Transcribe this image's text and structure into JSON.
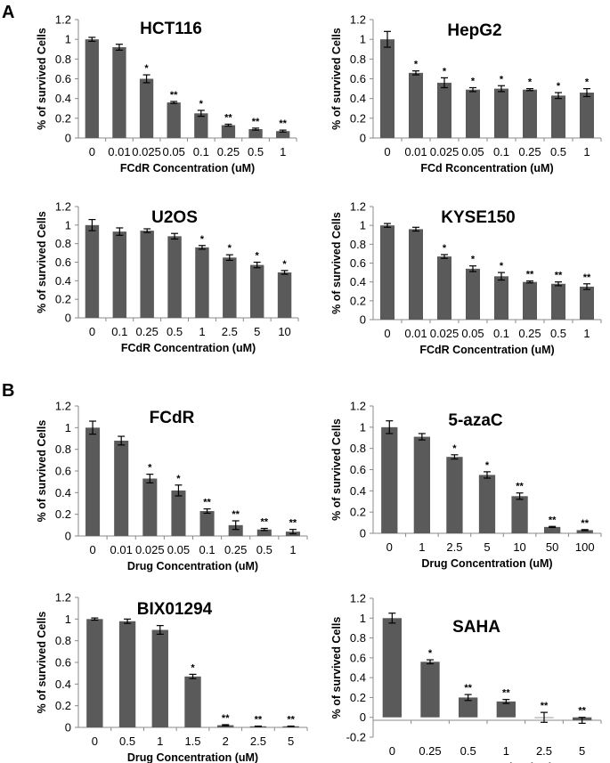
{
  "panel_labels": [
    "A",
    "B"
  ],
  "colors": {
    "bar": "#5a5a5a",
    "axis": "#888888",
    "text": "#000000"
  },
  "chart_data": [
    {
      "type": "bar",
      "title": "HCT116",
      "xlabel": "FCdR Concentration (uM)",
      "ylabel": "% of survived Cells",
      "categories": [
        "0",
        "0.01",
        "0.025",
        "0.05",
        "0.1",
        "0.25",
        "0.5",
        "1"
      ],
      "values": [
        1.0,
        0.92,
        0.6,
        0.36,
        0.25,
        0.13,
        0.09,
        0.07
      ],
      "errors": [
        0.02,
        0.03,
        0.04,
        0.01,
        0.03,
        0.01,
        0.01,
        0.01
      ],
      "significance": [
        "",
        "",
        "*",
        "**",
        "*",
        "**",
        "**",
        "**"
      ],
      "ylim": [
        0,
        1.2
      ],
      "yticks": [
        "0",
        "0.2",
        "0.4",
        "0.6",
        "0.8",
        "1",
        "1.2"
      ]
    },
    {
      "type": "bar",
      "title": "HepG2",
      "xlabel": "FCd Rconcentration (uM)",
      "ylabel": "% of survived Cells",
      "categories": [
        "0",
        "0.01",
        "0.025",
        "0.05",
        "0.1",
        "0.25",
        "0.5",
        "1"
      ],
      "values": [
        1.0,
        0.66,
        0.56,
        0.49,
        0.5,
        0.49,
        0.43,
        0.46
      ],
      "errors": [
        0.08,
        0.02,
        0.05,
        0.02,
        0.03,
        0.01,
        0.03,
        0.04
      ],
      "significance": [
        "",
        "*",
        "*",
        "*",
        "*",
        "*",
        "*",
        "*"
      ],
      "ylim": [
        0,
        1.2
      ],
      "yticks": [
        "0",
        "0.2",
        "0.4",
        "0.6",
        "0.8",
        "1",
        "1.2"
      ]
    },
    {
      "type": "bar",
      "title": "U2OS",
      "xlabel": "FCdR Concentration (uM)",
      "ylabel": "% of survived Cells",
      "categories": [
        "0",
        "0.1",
        "0.25",
        "0.5",
        "1",
        "2.5",
        "5",
        "10"
      ],
      "values": [
        1.0,
        0.93,
        0.94,
        0.88,
        0.76,
        0.65,
        0.57,
        0.49
      ],
      "errors": [
        0.06,
        0.04,
        0.02,
        0.03,
        0.02,
        0.03,
        0.03,
        0.02
      ],
      "significance": [
        "",
        "",
        "",
        "",
        "*",
        "*",
        "*",
        "*"
      ],
      "ylim": [
        0,
        1.2
      ],
      "yticks": [
        "0",
        "0.2",
        "0.4",
        "0.6",
        "0.8",
        "1",
        "1.2"
      ]
    },
    {
      "type": "bar",
      "title": "KYSE150",
      "xlabel": "FCdR Concentration (uM)",
      "ylabel": "% of survived Cells",
      "categories": [
        "0",
        "0.01",
        "0.025",
        "0.05",
        "0.1",
        "0.25",
        "0.5",
        "1"
      ],
      "values": [
        1.0,
        0.96,
        0.67,
        0.54,
        0.46,
        0.4,
        0.38,
        0.35
      ],
      "errors": [
        0.02,
        0.02,
        0.02,
        0.03,
        0.04,
        0.01,
        0.02,
        0.03
      ],
      "significance": [
        "",
        "",
        "*",
        "*",
        "*",
        "**",
        "**",
        "**"
      ],
      "ylim": [
        0,
        1.2
      ],
      "yticks": [
        "0",
        "0.2",
        "0.4",
        "0.6",
        "0.8",
        "1",
        "1.2"
      ]
    },
    {
      "type": "bar",
      "title": "FCdR",
      "xlabel": "Drug Concentration (uM)",
      "ylabel": "% of survived Cells",
      "categories": [
        "0",
        "0.01",
        "0.025",
        "0.05",
        "0.1",
        "0.25",
        "0.5",
        "1"
      ],
      "values": [
        1.0,
        0.88,
        0.53,
        0.42,
        0.23,
        0.1,
        0.06,
        0.04
      ],
      "errors": [
        0.06,
        0.04,
        0.04,
        0.05,
        0.02,
        0.04,
        0.01,
        0.02
      ],
      "significance": [
        "",
        "",
        "*",
        "*",
        "**",
        "**",
        "**",
        "**"
      ],
      "ylim": [
        0,
        1.2
      ],
      "yticks": [
        "0",
        "0.2",
        "0.4",
        "0.6",
        "0.8",
        "1",
        "1.2"
      ]
    },
    {
      "type": "bar",
      "title": "5-azaC",
      "xlabel": "Drug Concentration (uM)",
      "ylabel": "% of survived Cells",
      "categories": [
        "0",
        "1",
        "2.5",
        "5",
        "10",
        "50",
        "100"
      ],
      "values": [
        1.0,
        0.91,
        0.72,
        0.55,
        0.35,
        0.06,
        0.03
      ],
      "errors": [
        0.06,
        0.03,
        0.02,
        0.03,
        0.03,
        0.005,
        0.005
      ],
      "significance": [
        "",
        "",
        "*",
        "*",
        "**",
        "**",
        "**"
      ],
      "ylim": [
        0,
        1.2
      ],
      "yticks": [
        "0",
        "0.2",
        "0.4",
        "0.6",
        "0.8",
        "1",
        "1.2"
      ]
    },
    {
      "type": "bar",
      "title": "BIX01294",
      "xlabel": "Drug Concentration (uM)",
      "ylabel": "% of survived Cells",
      "categories": [
        "0",
        "0.5",
        "1",
        "1.5",
        "2",
        "2.5",
        "5"
      ],
      "values": [
        1.0,
        0.98,
        0.9,
        0.47,
        0.02,
        0.01,
        0.01
      ],
      "errors": [
        0.01,
        0.02,
        0.04,
        0.02,
        0.005,
        0.002,
        0.002
      ],
      "significance": [
        "",
        "",
        "",
        "*",
        "**",
        "**",
        "**"
      ],
      "ylim": [
        0,
        1.2
      ],
      "yticks": [
        "0",
        "0.2",
        "0.4",
        "0.6",
        "0.8",
        "1",
        "1.2"
      ]
    },
    {
      "type": "bar",
      "title": "SAHA",
      "xlabel": "Drug Concentration (uM)",
      "ylabel": "% of survived Cells",
      "categories": [
        "0",
        "0.25",
        "0.5",
        "1",
        "2.5",
        "5"
      ],
      "values": [
        1.0,
        0.56,
        0.2,
        0.16,
        0.0,
        -0.03
      ],
      "errors": [
        0.05,
        0.02,
        0.03,
        0.02,
        0.05,
        0.03
      ],
      "significance": [
        "",
        "*",
        "**",
        "**",
        "**",
        "**"
      ],
      "ylim": [
        -0.2,
        1.2
      ],
      "yticks": [
        "-0.2",
        "0",
        "0.2",
        "0.4",
        "0.6",
        "0.8",
        "1",
        "1.2"
      ]
    }
  ]
}
